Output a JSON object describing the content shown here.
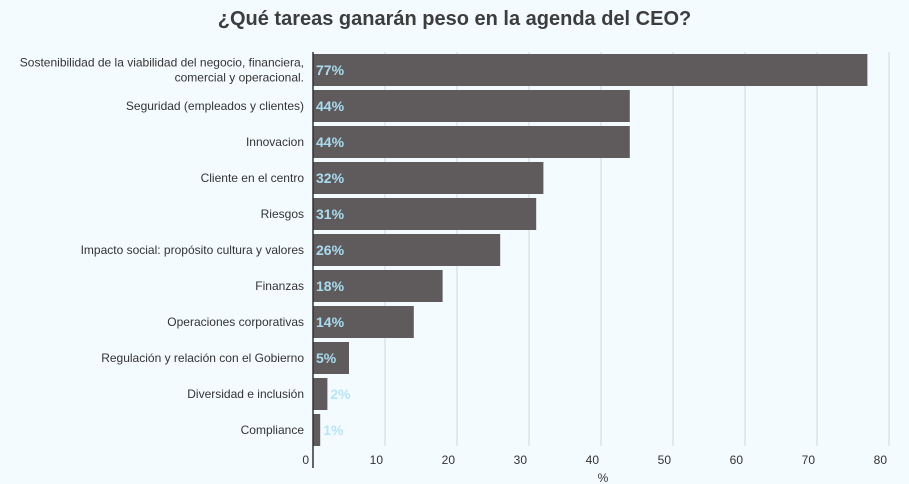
{
  "chart_data": {
    "type": "bar",
    "orientation": "horizontal",
    "title": "¿Qué tareas ganarán peso en la agenda del CEO?",
    "xlabel": "%",
    "ylabel": "",
    "xlim": [
      0,
      80
    ],
    "xticks": [
      0,
      10,
      20,
      30,
      40,
      50,
      60,
      70,
      80
    ],
    "grid": true,
    "categories": [
      [
        "Sostenibilidad de la viabilidad del negocio, financiera,",
        "comercial y operacional."
      ],
      [
        "Seguridad (empleados y clientes)"
      ],
      [
        "Innovacion"
      ],
      [
        "Cliente en el centro"
      ],
      [
        "Riesgos"
      ],
      [
        "Impacto social: propósito cultura y valores"
      ],
      [
        "Finanzas"
      ],
      [
        "Operaciones corporativas"
      ],
      [
        "Regulación y relación con el Gobierno"
      ],
      [
        "Diversidad e inclusión"
      ],
      [
        "Compliance"
      ]
    ],
    "values": [
      77,
      44,
      44,
      32,
      31,
      26,
      18,
      14,
      5,
      2,
      1
    ],
    "labels": [
      "77%",
      "44%",
      "44%",
      "32%",
      "31%",
      "26%",
      "18%",
      "14%",
      "5%",
      "2%",
      "1%"
    ],
    "colors": {
      "bar": "#5f5b5d",
      "label": "#a9dcf0",
      "label_outside": "#b8e4f5",
      "grid": "#cfd8dc",
      "background": "#f3fbfe"
    }
  }
}
